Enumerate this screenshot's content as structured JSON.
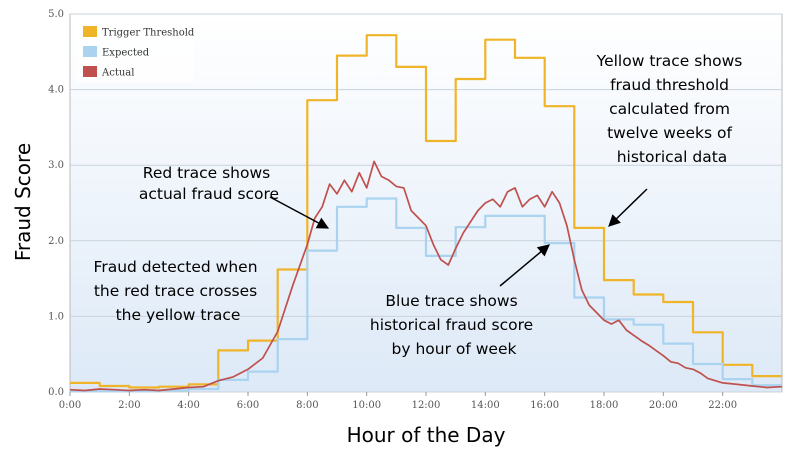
{
  "chart_data": {
    "type": "line",
    "xlabel": "Hour of the Day",
    "ylabel": "Fraud Score",
    "xlim": [
      0,
      24
    ],
    "ylim": [
      0,
      5
    ],
    "x_ticks": [
      "0:00",
      "2:00",
      "4:00",
      "6:00",
      "8:00",
      "10:00",
      "12:00",
      "14:00",
      "16:00",
      "18:00",
      "20:00",
      "22:00"
    ],
    "y_ticks": [
      "0.0",
      "1.0",
      "2.0",
      "3.0",
      "4.0",
      "5.0"
    ],
    "grid": "horizontal",
    "legend_position": "top-left",
    "series": [
      {
        "name": "Trigger Threshold",
        "color": "#f0b429",
        "step": true,
        "x": [
          0,
          1,
          2,
          3,
          4,
          5,
          6,
          7,
          8,
          9,
          10,
          11,
          12,
          13,
          14,
          15,
          16,
          17,
          18,
          19,
          20,
          21,
          22,
          23,
          24
        ],
        "values": [
          0.12,
          0.08,
          0.06,
          0.07,
          0.1,
          0.55,
          0.68,
          1.62,
          3.86,
          4.45,
          4.72,
          4.3,
          3.32,
          4.14,
          4.66,
          4.42,
          3.78,
          2.17,
          1.48,
          1.29,
          1.19,
          0.79,
          0.36,
          0.21,
          0.21
        ]
      },
      {
        "name": "Expected",
        "color": "#a9d3ef",
        "step": true,
        "x": [
          0,
          1,
          2,
          3,
          4,
          5,
          6,
          7,
          8,
          9,
          10,
          11,
          12,
          13,
          14,
          15,
          16,
          17,
          18,
          19,
          20,
          21,
          22,
          23,
          24
        ],
        "values": [
          0.01,
          0.01,
          0.01,
          0.02,
          0.04,
          0.16,
          0.27,
          0.7,
          1.87,
          2.45,
          2.56,
          2.17,
          1.8,
          2.18,
          2.33,
          2.33,
          1.97,
          1.25,
          0.96,
          0.89,
          0.64,
          0.37,
          0.17,
          0.09,
          0.09
        ]
      },
      {
        "name": "Actual",
        "color": "#c0504d",
        "step": false,
        "x": [
          0,
          0.5,
          1,
          1.5,
          2,
          2.5,
          3,
          3.5,
          4,
          4.5,
          5,
          5.5,
          6,
          6.5,
          7,
          7.5,
          8,
          8.25,
          8.5,
          8.75,
          9,
          9.25,
          9.5,
          9.75,
          10,
          10.25,
          10.5,
          10.75,
          11,
          11.25,
          11.5,
          11.75,
          12,
          12.25,
          12.5,
          12.75,
          13,
          13.25,
          13.5,
          13.75,
          14,
          14.25,
          14.5,
          14.75,
          15,
          15.25,
          15.5,
          15.75,
          16,
          16.25,
          16.5,
          16.75,
          17,
          17.25,
          17.5,
          17.75,
          18,
          18.25,
          18.5,
          18.75,
          19,
          19.25,
          19.5,
          19.75,
          20,
          20.25,
          20.5,
          20.75,
          21,
          21.25,
          21.5,
          21.75,
          22,
          22.5,
          23,
          23.5,
          24
        ],
        "values": [
          0.03,
          0.02,
          0.04,
          0.03,
          0.02,
          0.03,
          0.02,
          0.04,
          0.06,
          0.07,
          0.15,
          0.2,
          0.3,
          0.45,
          0.8,
          1.4,
          1.95,
          2.3,
          2.45,
          2.75,
          2.62,
          2.8,
          2.65,
          2.9,
          2.7,
          3.05,
          2.85,
          2.8,
          2.72,
          2.7,
          2.4,
          2.3,
          2.2,
          1.95,
          1.75,
          1.68,
          1.9,
          2.1,
          2.25,
          2.4,
          2.5,
          2.55,
          2.45,
          2.65,
          2.7,
          2.45,
          2.55,
          2.6,
          2.45,
          2.65,
          2.5,
          2.2,
          1.75,
          1.35,
          1.15,
          1.05,
          0.95,
          0.9,
          0.95,
          0.82,
          0.75,
          0.68,
          0.62,
          0.55,
          0.48,
          0.4,
          0.38,
          0.32,
          0.3,
          0.25,
          0.18,
          0.15,
          0.12,
          0.1,
          0.08,
          0.06,
          0.07
        ]
      }
    ],
    "annotations": [
      {
        "lines": [
          "Red trace shows",
          "actual fraud score"
        ]
      },
      {
        "lines": [
          "Yellow trace shows",
          "fraud threshold",
          "calculated from",
          "twelve weeks of",
          "historical data"
        ]
      },
      {
        "lines": [
          "Fraud detected when",
          "the red trace crosses",
          "the yellow trace"
        ]
      },
      {
        "lines": [
          "Blue trace shows",
          "historical fraud score",
          "by hour of week"
        ]
      }
    ]
  }
}
